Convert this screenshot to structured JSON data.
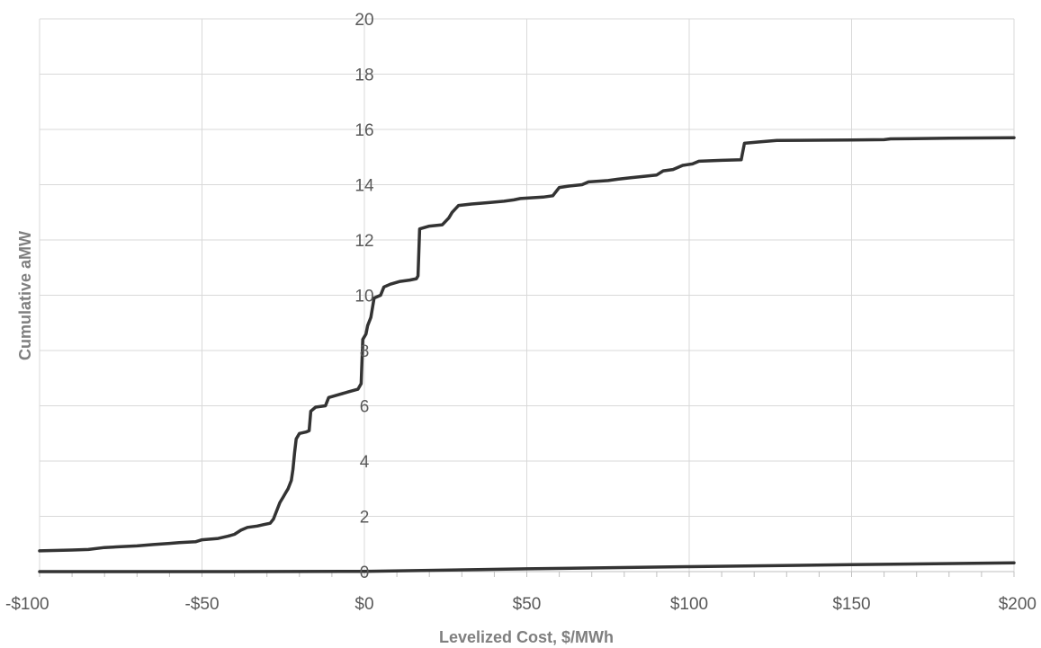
{
  "chart_data": {
    "type": "line",
    "title": "",
    "xlabel": "Levelized Cost, $/MWh",
    "ylabel": "Cumulative aMW",
    "xlim": [
      -100,
      200
    ],
    "ylim": [
      0,
      20
    ],
    "x_ticks": [
      -100,
      -50,
      0,
      50,
      100,
      150,
      200
    ],
    "x_tick_labels": [
      "-$100",
      "-$50",
      "$0",
      "$50",
      "$100",
      "$150",
      "$200"
    ],
    "y_ticks": [
      0,
      2,
      4,
      6,
      8,
      10,
      12,
      14,
      16,
      18,
      20
    ],
    "y_tick_labels": [
      "0",
      "2",
      "4",
      "6",
      "8",
      "10",
      "12",
      "14",
      "16",
      "18",
      "20"
    ],
    "grid": "vertical and horizontal major gridlines",
    "legend": "none",
    "series": [
      {
        "color": "#333333",
        "points": [
          [
            -100,
            0.75
          ],
          [
            -90,
            0.78
          ],
          [
            -85,
            0.8
          ],
          [
            -80,
            0.87
          ],
          [
            -75,
            0.9
          ],
          [
            -70,
            0.93
          ],
          [
            -65,
            0.98
          ],
          [
            -60,
            1.02
          ],
          [
            -57,
            1.05
          ],
          [
            -52,
            1.08
          ],
          [
            -50,
            1.15
          ],
          [
            -45,
            1.2
          ],
          [
            -42,
            1.28
          ],
          [
            -40,
            1.35
          ],
          [
            -38,
            1.5
          ],
          [
            -36,
            1.6
          ],
          [
            -33,
            1.65
          ],
          [
            -31,
            1.7
          ],
          [
            -29,
            1.75
          ],
          [
            -28,
            1.9
          ],
          [
            -27,
            2.2
          ],
          [
            -26,
            2.5
          ],
          [
            -25,
            2.7
          ],
          [
            -24,
            2.9
          ],
          [
            -23.5,
            3.0
          ],
          [
            -22.5,
            3.3
          ],
          [
            -22,
            3.7
          ],
          [
            -21.5,
            4.3
          ],
          [
            -21,
            4.8
          ],
          [
            -20,
            5.0
          ],
          [
            -18,
            5.05
          ],
          [
            -17,
            5.1
          ],
          [
            -16.5,
            5.8
          ],
          [
            -15,
            5.95
          ],
          [
            -12,
            6.0
          ],
          [
            -11,
            6.3
          ],
          [
            -8,
            6.4
          ],
          [
            -5,
            6.5
          ],
          [
            -2,
            6.6
          ],
          [
            -1,
            6.8
          ],
          [
            -0.5,
            8.4
          ],
          [
            0.5,
            8.6
          ],
          [
            1,
            8.9
          ],
          [
            2,
            9.2
          ],
          [
            3,
            9.9
          ],
          [
            5,
            10.0
          ],
          [
            6,
            10.3
          ],
          [
            8,
            10.4
          ],
          [
            11,
            10.5
          ],
          [
            14,
            10.55
          ],
          [
            16,
            10.6
          ],
          [
            16.5,
            10.7
          ],
          [
            17,
            12.4
          ],
          [
            20,
            12.5
          ],
          [
            24,
            12.55
          ],
          [
            26,
            12.8
          ],
          [
            27,
            13.0
          ],
          [
            29,
            13.25
          ],
          [
            33,
            13.3
          ],
          [
            38,
            13.35
          ],
          [
            43,
            13.4
          ],
          [
            46,
            13.45
          ],
          [
            48,
            13.5
          ],
          [
            55,
            13.55
          ],
          [
            58,
            13.6
          ],
          [
            60,
            13.9
          ],
          [
            63,
            13.95
          ],
          [
            67,
            14.0
          ],
          [
            69,
            14.1
          ],
          [
            75,
            14.15
          ],
          [
            78,
            14.2
          ],
          [
            82,
            14.25
          ],
          [
            86,
            14.3
          ],
          [
            90,
            14.35
          ],
          [
            92,
            14.5
          ],
          [
            95,
            14.55
          ],
          [
            98,
            14.7
          ],
          [
            101,
            14.75
          ],
          [
            103,
            14.85
          ],
          [
            110,
            14.88
          ],
          [
            116,
            14.9
          ],
          [
            117,
            15.5
          ],
          [
            122,
            15.55
          ],
          [
            127,
            15.6
          ],
          [
            150,
            15.62
          ],
          [
            160,
            15.63
          ],
          [
            162,
            15.66
          ],
          [
            180,
            15.68
          ],
          [
            200,
            15.7
          ]
        ]
      },
      {
        "color": "#333333",
        "points": [
          [
            -100,
            0.0
          ],
          [
            -50,
            0.0
          ],
          [
            0,
            0.01
          ],
          [
            50,
            0.1
          ],
          [
            100,
            0.18
          ],
          [
            150,
            0.25
          ],
          [
            200,
            0.32
          ]
        ]
      }
    ]
  }
}
